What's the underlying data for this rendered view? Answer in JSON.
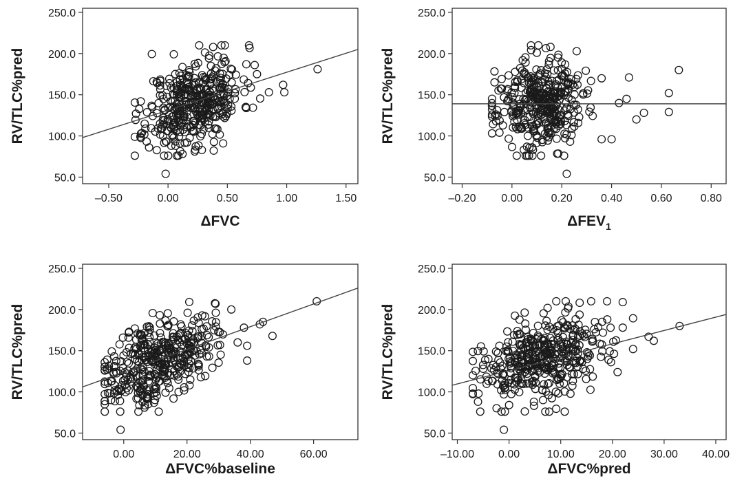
{
  "chart_data": [
    {
      "type": "scatter",
      "xlabel": "ΔFVC",
      "ylabel": "RV/TLC%pred",
      "xlim": [
        -0.72,
        1.6
      ],
      "ylim": [
        42,
        255
      ],
      "xticks": [
        "–0.50",
        "0.00",
        "0.50",
        "1.00",
        "1.50"
      ],
      "xtick_values": [
        -0.5,
        0.0,
        0.5,
        1.0,
        1.5
      ],
      "yticks": [
        "250.0",
        "200.0",
        "150.0",
        "100.0",
        "50.0"
      ],
      "ytick_values": [
        250,
        200,
        150,
        100,
        50
      ],
      "fit_line": {
        "x": [
          -0.72,
          1.6
        ],
        "y": [
          98,
          205
        ]
      },
      "point_count": 420,
      "point_cloud": {
        "x_center": 0.22,
        "x_spread": 0.2,
        "x_min": -0.28,
        "x_max": 0.98,
        "y_center": 140,
        "y_spread": 26,
        "y_min": 76,
        "y_max": 210,
        "slope": 45,
        "seed": 11
      },
      "points": [
        [
          -0.02,
          54
        ],
        [
          1.26,
          181
        ],
        [
          0.97,
          162
        ],
        [
          0.98,
          153
        ],
        [
          0.85,
          153
        ],
        [
          0.73,
          186
        ],
        [
          0.75,
          175
        ],
        [
          0.66,
          187
        ],
        [
          0.45,
          210
        ],
        [
          0.38,
          208
        ],
        [
          -0.27,
          127
        ],
        [
          -0.23,
          142
        ],
        [
          -0.2,
          102
        ],
        [
          -0.16,
          86
        ]
      ]
    },
    {
      "type": "scatter",
      "xlabel": "ΔFEV",
      "xlabel_sub": "1",
      "ylabel": "RV/TLC%pred",
      "xlim": [
        -0.24,
        0.86
      ],
      "ylim": [
        42,
        255
      ],
      "xticks": [
        "–0.20",
        "0.00",
        "0.20",
        "0.40",
        "0.60",
        "0.80"
      ],
      "xtick_values": [
        -0.2,
        0.0,
        0.2,
        0.4,
        0.6,
        0.8
      ],
      "yticks": [
        "250.0",
        "200.0",
        "150.0",
        "100.0",
        "50.0"
      ],
      "ytick_values": [
        250,
        200,
        150,
        100,
        50
      ],
      "fit_line": {
        "x": [
          -0.24,
          0.86
        ],
        "y": [
          139,
          139
        ]
      },
      "point_count": 400,
      "point_cloud": {
        "x_center": 0.11,
        "x_spread": 0.085,
        "x_min": -0.08,
        "x_max": 0.45,
        "y_center": 139,
        "y_spread": 27,
        "y_min": 76,
        "y_max": 210,
        "slope": 0,
        "seed": 23
      },
      "points": [
        [
          0.22,
          54
        ],
        [
          0.67,
          180
        ],
        [
          0.63,
          152
        ],
        [
          0.63,
          129
        ],
        [
          0.53,
          128
        ],
        [
          0.5,
          120
        ],
        [
          0.47,
          171
        ],
        [
          0.46,
          145
        ],
        [
          0.43,
          140
        ],
        [
          0.4,
          96
        ],
        [
          0.36,
          96
        ],
        [
          0.36,
          170
        ],
        [
          -0.07,
          165
        ],
        [
          -0.08,
          126
        ],
        [
          -0.05,
          104
        ]
      ]
    },
    {
      "type": "scatter",
      "xlabel": "ΔFVC%baseline",
      "ylabel": "RV/TLC%pred",
      "xlim": [
        -13,
        74
      ],
      "ylim": [
        42,
        255
      ],
      "xticks": [
        "0.00",
        "20.00",
        "40.00",
        "60.00"
      ],
      "xtick_values": [
        0,
        20,
        40,
        60
      ],
      "yticks": [
        "250.0",
        "200.0",
        "150.0",
        "100.0",
        "50.0"
      ],
      "ytick_values": [
        250,
        200,
        150,
        100,
        50
      ],
      "fit_line": {
        "x": [
          -13,
          74
        ],
        "y": [
          106,
          226
        ]
      },
      "point_count": 420,
      "point_cloud": {
        "x_center": 11,
        "x_spread": 8.5,
        "x_min": -6,
        "x_max": 40,
        "y_center": 140,
        "y_spread": 24,
        "y_min": 76,
        "y_max": 210,
        "slope": 1.4,
        "seed": 37
      },
      "points": [
        [
          -1,
          54
        ],
        [
          61,
          210
        ],
        [
          47,
          168
        ],
        [
          44,
          185
        ],
        [
          43,
          182
        ],
        [
          39,
          138
        ],
        [
          39,
          156
        ],
        [
          38,
          178
        ],
        [
          36,
          160
        ],
        [
          34,
          200
        ],
        [
          29,
          207
        ],
        [
          -6,
          136
        ],
        [
          -5,
          111
        ],
        [
          -4,
          90
        ]
      ]
    },
    {
      "type": "scatter",
      "xlabel": "ΔFVC%pred",
      "ylabel": "RV/TLC%pred",
      "xlim": [
        -11,
        42
      ],
      "ylim": [
        42,
        255
      ],
      "xticks": [
        "–10.00",
        "0.00",
        "10.00",
        "20.00",
        "30.00",
        "40.00"
      ],
      "xtick_values": [
        -10,
        0,
        10,
        20,
        30,
        40
      ],
      "yticks": [
        "250.0",
        "200.0",
        "150.0",
        "100.0",
        "50.0"
      ],
      "ytick_values": [
        250,
        200,
        150,
        100,
        50
      ],
      "fit_line": {
        "x": [
          -11,
          42
        ],
        "y": [
          108,
          194
        ]
      },
      "point_count": 430,
      "point_cloud": {
        "x_center": 7,
        "x_spread": 6.5,
        "x_min": -7,
        "x_max": 24,
        "y_center": 140,
        "y_spread": 25,
        "y_min": 76,
        "y_max": 210,
        "slope": 1.6,
        "seed": 53
      },
      "points": [
        [
          -1,
          54
        ],
        [
          33,
          180
        ],
        [
          27,
          167
        ],
        [
          28,
          162
        ],
        [
          24,
          152
        ],
        [
          22,
          209
        ],
        [
          22,
          178
        ],
        [
          21,
          124
        ],
        [
          19,
          188
        ],
        [
          18,
          185
        ],
        [
          -7,
          98
        ],
        [
          -6,
          88
        ],
        [
          -5,
          128
        ],
        [
          -4,
          140
        ]
      ]
    }
  ]
}
